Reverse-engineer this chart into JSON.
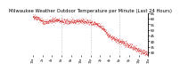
{
  "title": "Milwaukee Weather Outdoor Temperature per Minute (Last 24 Hours)",
  "background_color": "#ffffff",
  "plot_background": "#ffffff",
  "line_color": "#cc0000",
  "grid_color": "#888888",
  "ylim": [
    28,
    65
  ],
  "yticks": [
    30,
    35,
    40,
    45,
    50,
    55,
    60,
    65
  ],
  "num_points": 1440,
  "vlines": [
    360,
    720,
    1080
  ],
  "title_fontsize": 3.8,
  "tick_fontsize": 3.0,
  "seed": 42
}
